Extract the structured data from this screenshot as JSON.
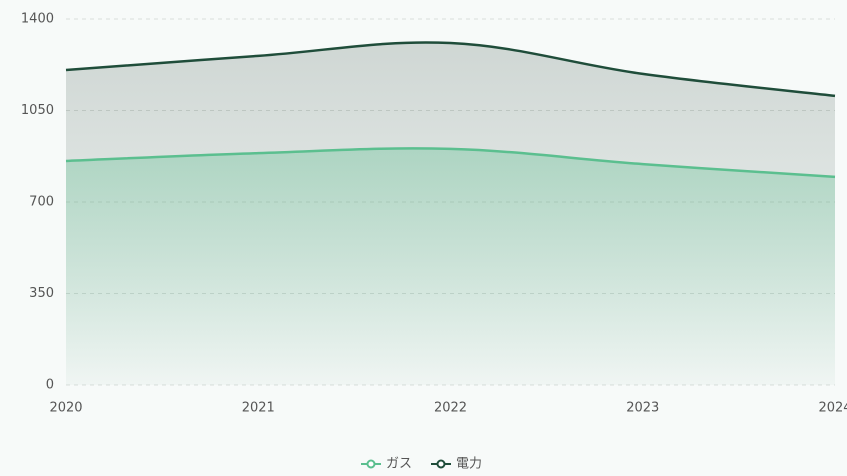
{
  "chart_data": {
    "type": "area",
    "categories": [
      "2020",
      "2021",
      "2022",
      "2023",
      "2024"
    ],
    "series": [
      {
        "name": "ガス",
        "color": "#5bbf8f",
        "values": [
          857,
          887,
          903,
          845,
          796
        ]
      },
      {
        "name": "電力",
        "color": "#1f4d3a",
        "values": [
          1205,
          1259,
          1308,
          1190,
          1106
        ]
      }
    ],
    "ylim": [
      0,
      1400
    ],
    "yticks": [
      0,
      350,
      700,
      1050,
      1400
    ],
    "grid": true,
    "legend": "bottom"
  }
}
